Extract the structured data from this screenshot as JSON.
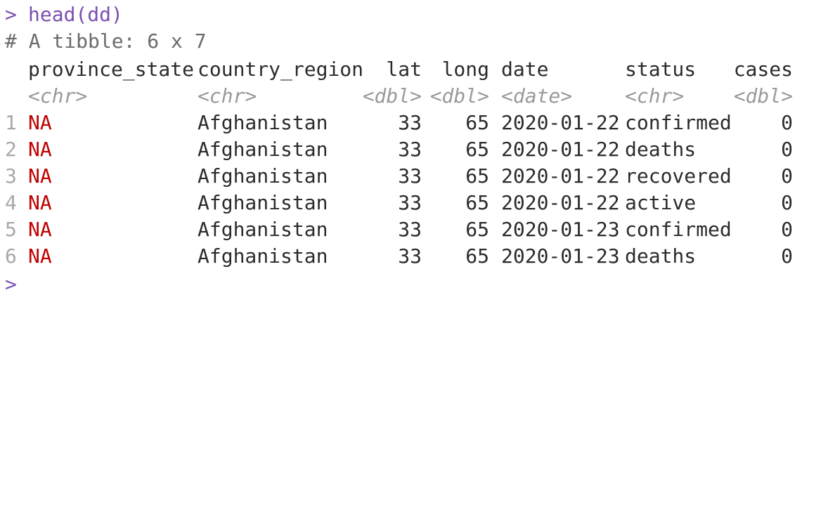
{
  "console": {
    "prompt": ">",
    "command": "head(dd)",
    "comment": "# A tibble: 6 x 7",
    "final_prompt": ">"
  },
  "table": {
    "columns": [
      {
        "name": "province_state",
        "type": "<chr>"
      },
      {
        "name": "country_region",
        "type": "<chr>"
      },
      {
        "name": "lat",
        "type": "<dbl>"
      },
      {
        "name": "long",
        "type": "<dbl>"
      },
      {
        "name": "date",
        "type": "<date>"
      },
      {
        "name": "status",
        "type": "<chr>"
      },
      {
        "name": "cases",
        "type": "<dbl>"
      }
    ],
    "rows": [
      {
        "n": "1",
        "province_state": "NA",
        "country_region": "Afghanistan",
        "lat": "33",
        "long": "65",
        "date": "2020-01-22",
        "status": "confirmed",
        "cases": "0"
      },
      {
        "n": "2",
        "province_state": "NA",
        "country_region": "Afghanistan",
        "lat": "33",
        "long": "65",
        "date": "2020-01-22",
        "status": "deaths",
        "cases": "0"
      },
      {
        "n": "3",
        "province_state": "NA",
        "country_region": "Afghanistan",
        "lat": "33",
        "long": "65",
        "date": "2020-01-22",
        "status": "recovered",
        "cases": "0"
      },
      {
        "n": "4",
        "province_state": "NA",
        "country_region": "Afghanistan",
        "lat": "33",
        "long": "65",
        "date": "2020-01-22",
        "status": "active",
        "cases": "0"
      },
      {
        "n": "5",
        "province_state": "NA",
        "country_region": "Afghanistan",
        "lat": "33",
        "long": "65",
        "date": "2020-01-23",
        "status": "confirmed",
        "cases": "0"
      },
      {
        "n": "6",
        "province_state": "NA",
        "country_region": "Afghanistan",
        "lat": "33",
        "long": "65",
        "date": "2020-01-23",
        "status": "deaths",
        "cases": "0"
      }
    ]
  },
  "colors": {
    "prompt": "#7b4fb0",
    "na": "#c00000",
    "muted": "#9a9a9a"
  }
}
